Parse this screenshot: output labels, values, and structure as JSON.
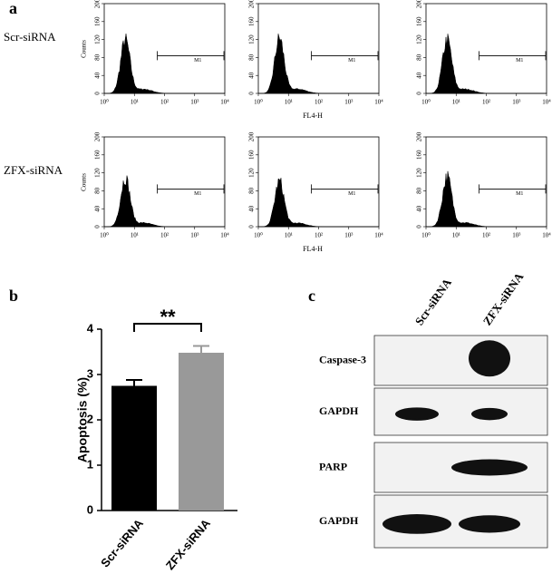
{
  "panel_labels": [
    "a",
    "b",
    "c"
  ],
  "flow": {
    "rows": [
      "Scr-siRNA",
      "ZFX-siRNA"
    ],
    "ylabel": "Counts",
    "xlabel": "FL4-H",
    "gate": "M1",
    "ylim": [
      0,
      200
    ],
    "yticks": [
      0,
      40,
      80,
      120,
      160,
      200
    ],
    "xlim": [
      1,
      10000
    ],
    "xscale": "log",
    "xticks": [
      {
        "value": 1,
        "label": "10⁰"
      },
      {
        "value": 10,
        "label": "10¹"
      },
      {
        "value": 100,
        "label": "10²"
      },
      {
        "value": 1000,
        "label": "10³"
      },
      {
        "value": 10000,
        "label": "10⁴"
      }
    ]
  },
  "chart_data": {
    "type": "bar",
    "ylabel": "Apoptosis (%)",
    "categories": [
      "Scr-siRNA",
      "ZFX-siRNA"
    ],
    "values": [
      2.75,
      3.48
    ],
    "errors": [
      0.13,
      0.15
    ],
    "colors": [
      "#000000",
      "#999999"
    ],
    "ylim": [
      0,
      4
    ],
    "yticks": [
      0,
      1,
      2,
      3,
      4
    ],
    "annotation": "**"
  },
  "blot": {
    "lanes": [
      "Scr-siRNA",
      "ZFX-siRNA"
    ],
    "rows": [
      "Caspase-3",
      "GAPDH",
      "PARP",
      "GAPDH"
    ]
  }
}
